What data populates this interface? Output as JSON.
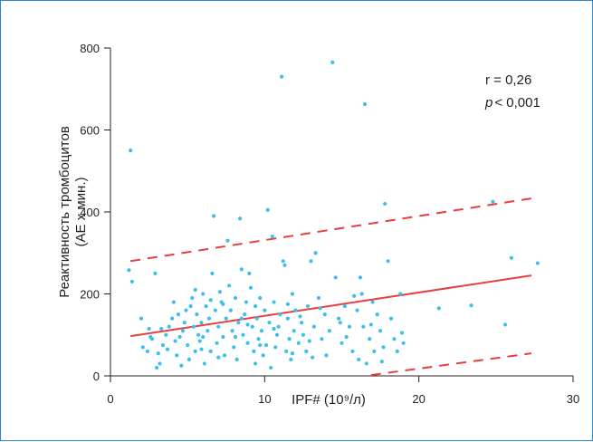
{
  "chart_data": {
    "type": "scatter",
    "xlabel": "IPF# (10⁹/л)",
    "ylabel_line1": "Реактивность тромбоцитов",
    "ylabel_line2": "(AE x мин.)",
    "xlim": [
      0,
      30
    ],
    "ylim": [
      0,
      800
    ],
    "xticks": [
      0,
      10,
      20,
      30
    ],
    "yticks": [
      0,
      200,
      400,
      600,
      800
    ],
    "grid": false,
    "colors": {
      "points": "#3dbfec",
      "regression": "#e63f3f",
      "axes": "#231f20",
      "frame": "#2f86c4"
    },
    "annotations": {
      "r": "r = 0,26",
      "p_label": "p",
      "p_value": "< 0,001"
    },
    "regression": {
      "x": [
        1.3,
        27.3
      ],
      "y": [
        97,
        245
      ]
    },
    "confidence_upper": {
      "x": [
        1.3,
        27.3
      ],
      "y": [
        280,
        433
      ]
    },
    "confidence_lower": {
      "x": [
        16.9,
        27.3
      ],
      "y": [
        2,
        55
      ]
    },
    "points": [
      [
        1.3,
        550
      ],
      [
        1.2,
        258
      ],
      [
        1.4,
        230
      ],
      [
        2.0,
        140
      ],
      [
        2.5,
        115
      ],
      [
        2.1,
        70
      ],
      [
        2.4,
        60
      ],
      [
        2.7,
        90
      ],
      [
        2.9,
        250
      ],
      [
        3.1,
        55
      ],
      [
        3.4,
        75
      ],
      [
        3.6,
        100
      ],
      [
        3.2,
        30
      ],
      [
        3.0,
        20
      ],
      [
        3.8,
        120
      ],
      [
        4.0,
        140
      ],
      [
        4.2,
        85
      ],
      [
        3.7,
        65
      ],
      [
        4.3,
        50
      ],
      [
        4.5,
        95
      ],
      [
        4.7,
        110
      ],
      [
        4.8,
        130
      ],
      [
        4.9,
        160
      ],
      [
        5.0,
        75
      ],
      [
        5.1,
        40
      ],
      [
        5.2,
        170
      ],
      [
        5.3,
        190
      ],
      [
        5.4,
        120
      ],
      [
        5.5,
        60
      ],
      [
        5.6,
        150
      ],
      [
        5.7,
        100
      ],
      [
        5.8,
        85
      ],
      [
        5.9,
        130
      ],
      [
        6.0,
        200
      ],
      [
        6.1,
        30
      ],
      [
        6.2,
        170
      ],
      [
        6.3,
        110
      ],
      [
        6.4,
        140
      ],
      [
        6.5,
        60
      ],
      [
        6.6,
        250
      ],
      [
        6.7,
        390
      ],
      [
        6.8,
        160
      ],
      [
        6.9,
        80
      ],
      [
        7.0,
        120
      ],
      [
        7.1,
        205
      ],
      [
        7.2,
        180
      ],
      [
        7.3,
        95
      ],
      [
        7.4,
        50
      ],
      [
        7.5,
        140
      ],
      [
        7.6,
        330
      ],
      [
        7.7,
        220
      ],
      [
        7.8,
        160
      ],
      [
        7.9,
        110
      ],
      [
        8.0,
        70
      ],
      [
        8.1,
        190
      ],
      [
        8.2,
        40
      ],
      [
        8.3,
        130
      ],
      [
        8.4,
        384
      ],
      [
        8.5,
        260
      ],
      [
        8.6,
        100
      ],
      [
        8.7,
        150
      ],
      [
        8.8,
        180
      ],
      [
        8.9,
        80
      ],
      [
        9.0,
        250
      ],
      [
        9.1,
        215
      ],
      [
        9.2,
        120
      ],
      [
        9.3,
        60
      ],
      [
        9.4,
        170
      ],
      [
        9.5,
        140
      ],
      [
        9.6,
        90
      ],
      [
        9.7,
        190
      ],
      [
        9.8,
        110
      ],
      [
        9.9,
        50
      ],
      [
        10.0,
        160
      ],
      [
        10.2,
        405
      ],
      [
        10.3,
        130
      ],
      [
        10.4,
        20
      ],
      [
        10.5,
        340
      ],
      [
        10.6,
        180
      ],
      [
        10.7,
        70
      ],
      [
        10.8,
        100
      ],
      [
        10.9,
        120
      ],
      [
        11.0,
        150
      ],
      [
        11.1,
        730
      ],
      [
        11.2,
        280
      ],
      [
        11.3,
        270
      ],
      [
        11.4,
        60
      ],
      [
        11.5,
        140
      ],
      [
        11.6,
        90
      ],
      [
        11.7,
        40
      ],
      [
        11.8,
        200
      ],
      [
        11.9,
        110
      ],
      [
        12.0,
        160
      ],
      [
        12.2,
        80
      ],
      [
        12.4,
        130
      ],
      [
        12.5,
        100
      ],
      [
        12.7,
        60
      ],
      [
        12.8,
        170
      ],
      [
        13.0,
        280
      ],
      [
        13.2,
        120
      ],
      [
        13.3,
        300
      ],
      [
        13.5,
        190
      ],
      [
        13.7,
        90
      ],
      [
        13.9,
        150
      ],
      [
        14.0,
        50
      ],
      [
        14.2,
        110
      ],
      [
        14.4,
        765
      ],
      [
        14.6,
        240
      ],
      [
        14.8,
        140
      ],
      [
        15.0,
        80
      ],
      [
        15.2,
        170
      ],
      [
        15.5,
        120
      ],
      [
        15.7,
        60
      ],
      [
        16.0,
        160
      ],
      [
        16.1,
        40
      ],
      [
        16.2,
        240
      ],
      [
        16.3,
        200
      ],
      [
        16.4,
        120
      ],
      [
        16.5,
        663
      ],
      [
        16.6,
        30
      ],
      [
        16.8,
        90
      ],
      [
        17.0,
        180
      ],
      [
        17.1,
        60
      ],
      [
        17.3,
        150
      ],
      [
        17.5,
        110
      ],
      [
        17.7,
        70
      ],
      [
        17.8,
        420
      ],
      [
        18.0,
        280
      ],
      [
        18.2,
        140
      ],
      [
        18.4,
        90
      ],
      [
        18.6,
        60
      ],
      [
        18.8,
        200
      ],
      [
        19.0,
        80
      ],
      [
        21.3,
        165
      ],
      [
        23.4,
        172
      ],
      [
        24.8,
        425
      ],
      [
        25.6,
        125
      ],
      [
        26.0,
        288
      ],
      [
        27.7,
        275
      ],
      [
        4.1,
        180
      ],
      [
        5.5,
        210
      ],
      [
        6.0,
        95
      ],
      [
        7.0,
        45
      ],
      [
        8.5,
        140
      ],
      [
        9.4,
        30
      ],
      [
        10.1,
        75
      ],
      [
        11.8,
        55
      ],
      [
        12.9,
        85
      ],
      [
        14.9,
        130
      ],
      [
        3.3,
        115
      ],
      [
        4.6,
        25
      ],
      [
        5.9,
        65
      ],
      [
        7.3,
        175
      ],
      [
        8.9,
        125
      ],
      [
        10.6,
        115
      ],
      [
        12.3,
        145
      ],
      [
        13.6,
        165
      ],
      [
        15.3,
        95
      ],
      [
        16.9,
        125
      ],
      [
        2.6,
        95
      ],
      [
        4.4,
        150
      ],
      [
        6.5,
        185
      ],
      [
        8.1,
        95
      ],
      [
        9.7,
        75
      ],
      [
        11.5,
        175
      ],
      [
        13.1,
        45
      ],
      [
        15.8,
        195
      ],
      [
        17.6,
        35
      ],
      [
        18.9,
        105
      ]
    ]
  }
}
